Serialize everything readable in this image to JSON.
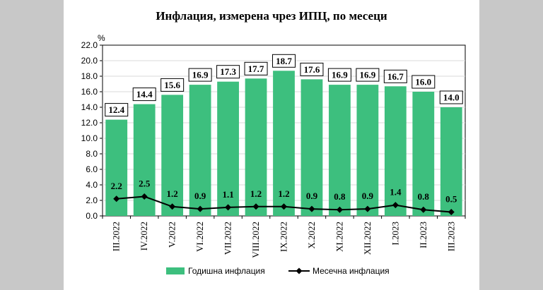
{
  "chart_data": {
    "type": "bar",
    "title": "Инфлация, измерена чрез ИПЦ, по месеци",
    "ylabel": "%",
    "ylim": [
      0,
      22
    ],
    "yticks": [
      "0.0",
      "2.0",
      "4.0",
      "6.0",
      "8.0",
      "10.0",
      "12.0",
      "14.0",
      "16.0",
      "18.0",
      "20.0",
      "22.0"
    ],
    "grid": true,
    "legend_position": "bottom",
    "categories": [
      "III.2022",
      "IV.2022",
      "V.2022",
      "VI.2022",
      "VII.2022",
      "VIII.2022",
      "IX.2022",
      "X.2022",
      "XI.2022",
      "XII.2022",
      "I.2023",
      "II.2023",
      "III.2023"
    ],
    "series": [
      {
        "name": "Годишна инфлация",
        "type": "bar",
        "color": "#3dbf7e",
        "values": [
          12.4,
          14.4,
          15.6,
          16.9,
          17.3,
          17.7,
          18.7,
          17.6,
          16.9,
          16.9,
          16.7,
          16.0,
          14.0
        ],
        "labels": [
          "12.4",
          "14.4",
          "15.6",
          "16.9",
          "17.3",
          "17.7",
          "18.7",
          "17.6",
          "16.9",
          "16.9",
          "16.7",
          "16.0",
          "14.0"
        ]
      },
      {
        "name": "Месечна инфлация",
        "type": "line",
        "color": "#000000",
        "marker": "diamond",
        "values": [
          2.2,
          2.5,
          1.2,
          0.9,
          1.1,
          1.2,
          1.2,
          0.9,
          0.8,
          0.9,
          1.4,
          0.8,
          0.5
        ],
        "labels": [
          "2.2",
          "2.5",
          "1.2",
          "0.9",
          "1.1",
          "1.2",
          "1.2",
          "0.9",
          "0.8",
          "0.9",
          "1.4",
          "0.8",
          "0.5"
        ]
      }
    ]
  }
}
